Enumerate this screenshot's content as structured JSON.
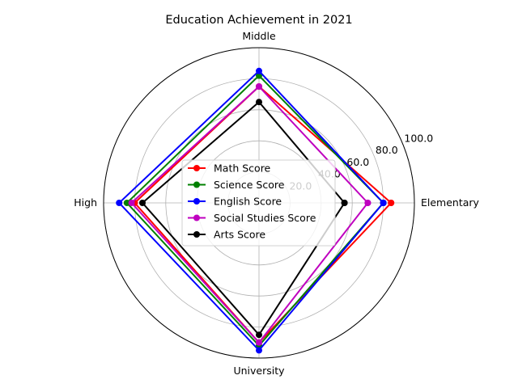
{
  "chart_data": {
    "type": "radar",
    "title": "Education Achievement in 2021",
    "categories": [
      "Elementary",
      "Middle",
      "High",
      "University"
    ],
    "radial_ticks": [
      20.0,
      40.0,
      60.0,
      80.0,
      100.0
    ],
    "radial_tick_labels": [
      "20.0",
      "40.0",
      "60.0",
      "80.0",
      "100.0"
    ],
    "rlim": [
      0,
      100
    ],
    "grid": true,
    "legend_position": "center",
    "series": [
      {
        "name": "Math Score",
        "color": "#ff0000",
        "values": [
          85,
          75,
          80,
          90
        ]
      },
      {
        "name": "Science Score",
        "color": "#008000",
        "values": [
          80,
          82,
          85,
          92
        ]
      },
      {
        "name": "English Score",
        "color": "#0000ff",
        "values": [
          80,
          85,
          90,
          95
        ]
      },
      {
        "name": "Social Studies Score",
        "color": "#bf00bf",
        "values": [
          70,
          75,
          82,
          90
        ]
      },
      {
        "name": "Arts Score",
        "color": "#000000",
        "values": [
          55,
          65,
          75,
          85
        ]
      }
    ]
  }
}
